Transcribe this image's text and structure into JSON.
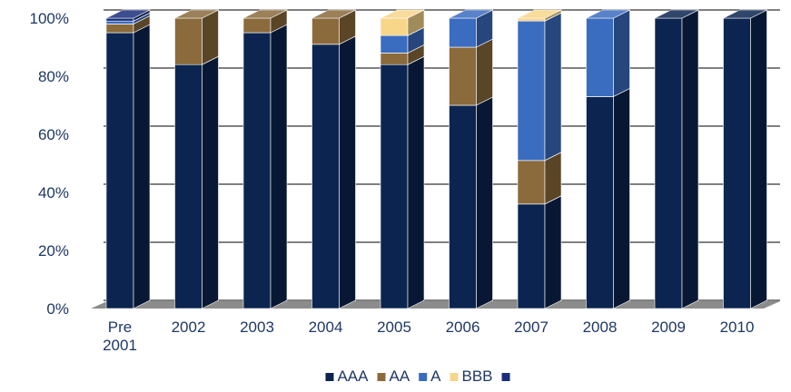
{
  "chart_data": {
    "type": "bar",
    "stacked": true,
    "percent_stacked": true,
    "three_d": true,
    "categories": [
      "Pre\n2001",
      "2002",
      "2003",
      "2004",
      "2005",
      "2006",
      "2007",
      "2008",
      "2009",
      "2010"
    ],
    "series": [
      {
        "name": "AAA",
        "color": "#0c2550",
        "values": [
          95,
          84,
          95,
          91,
          84,
          70,
          36,
          73,
          100,
          100
        ]
      },
      {
        "name": "AA",
        "color": "#8b6a3c",
        "values": [
          3,
          16,
          5,
          9,
          4,
          20,
          15,
          0,
          0,
          0
        ]
      },
      {
        "name": "A",
        "color": "#3a6cc0",
        "values": [
          1,
          0,
          0,
          0,
          6,
          10,
          48,
          27,
          0,
          0
        ]
      },
      {
        "name": "BBB",
        "color": "#f7d68a",
        "values": [
          0,
          0,
          0,
          0,
          6,
          0,
          1,
          0,
          0,
          0
        ]
      },
      {
        "name": "",
        "color": "#1b2f7a",
        "values": [
          1,
          0,
          0,
          0,
          0,
          0,
          0,
          0,
          0,
          0
        ]
      }
    ],
    "y_ticks": [
      "0%",
      "20%",
      "40%",
      "60%",
      "80%",
      "100%"
    ],
    "ylim": [
      0,
      100
    ],
    "grid": true,
    "legend": "bottom",
    "floor_color": "#8c8c8c"
  }
}
